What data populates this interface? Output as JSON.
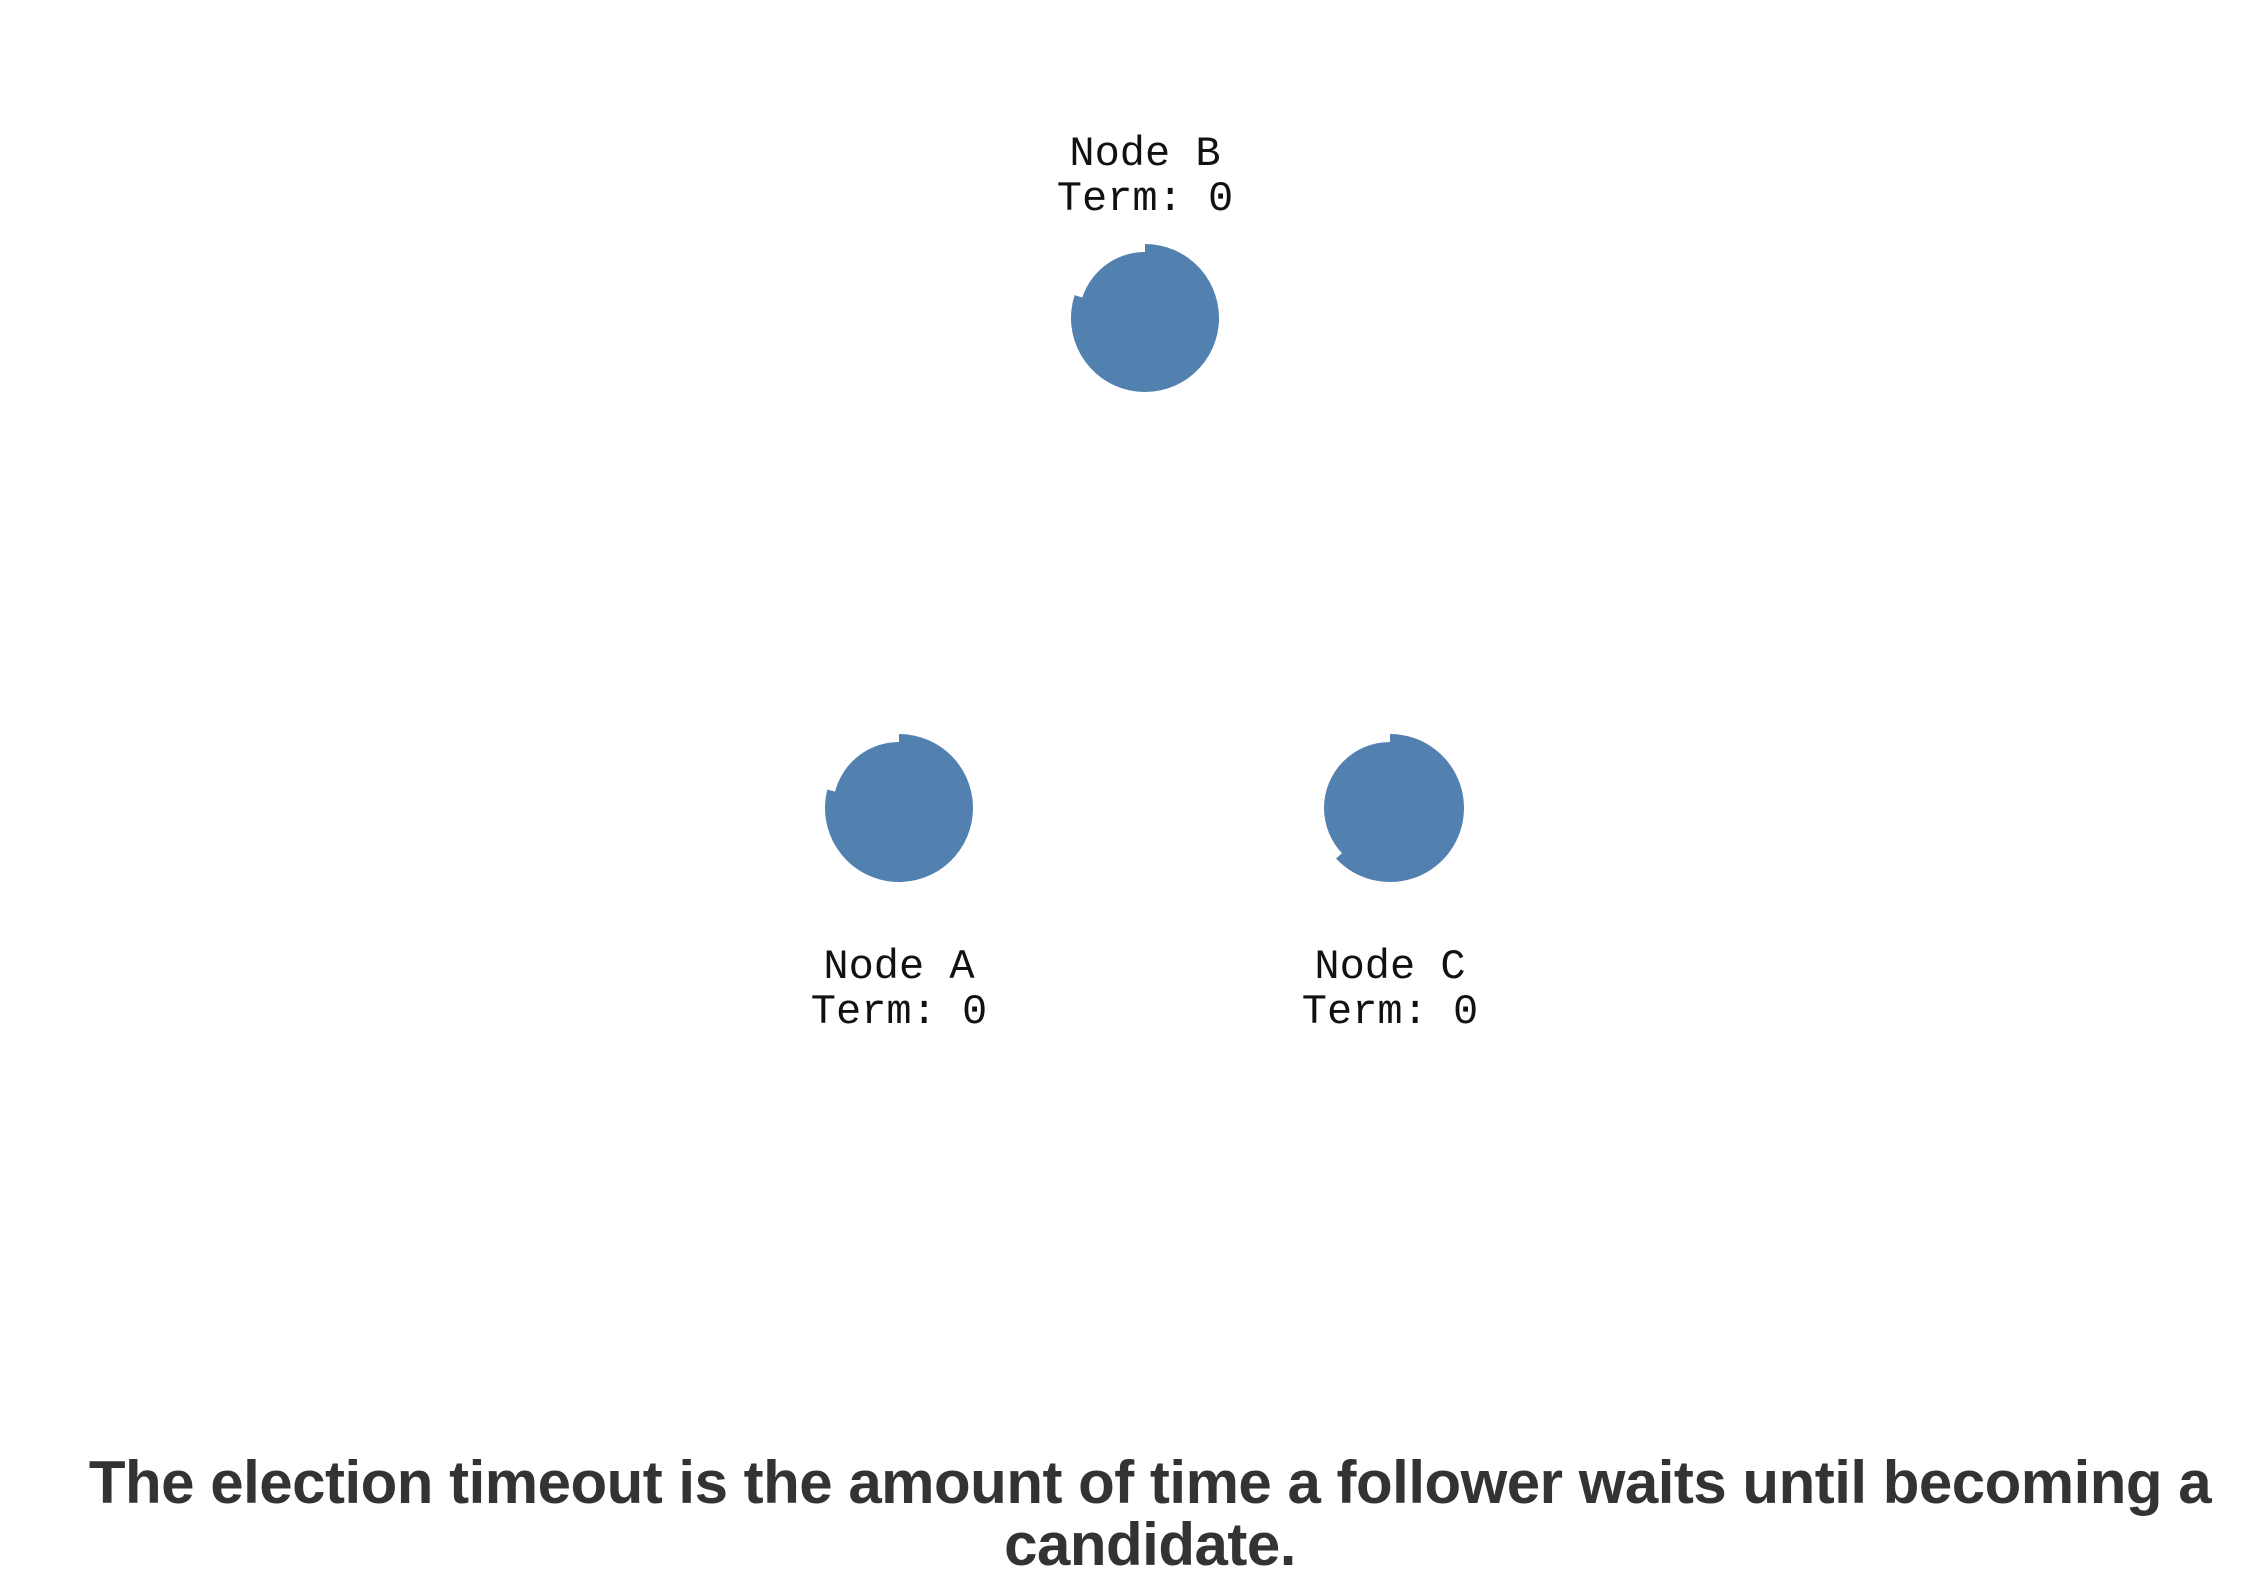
{
  "colors": {
    "follower": "#5281b0",
    "text": "#111111",
    "caption": "#333333",
    "background": "#ffffff"
  },
  "nodes": [
    {
      "name": "Node B",
      "term_label": "Term: 0",
      "timeout_remaining": 0.8
    },
    {
      "name": "Node A",
      "term_label": "Term: 0",
      "timeout_remaining": 0.79
    },
    {
      "name": "Node C",
      "term_label": "Term: 0",
      "timeout_remaining": 0.63
    }
  ],
  "caption": "The election timeout is the amount of time a follower waits until becoming a candidate."
}
